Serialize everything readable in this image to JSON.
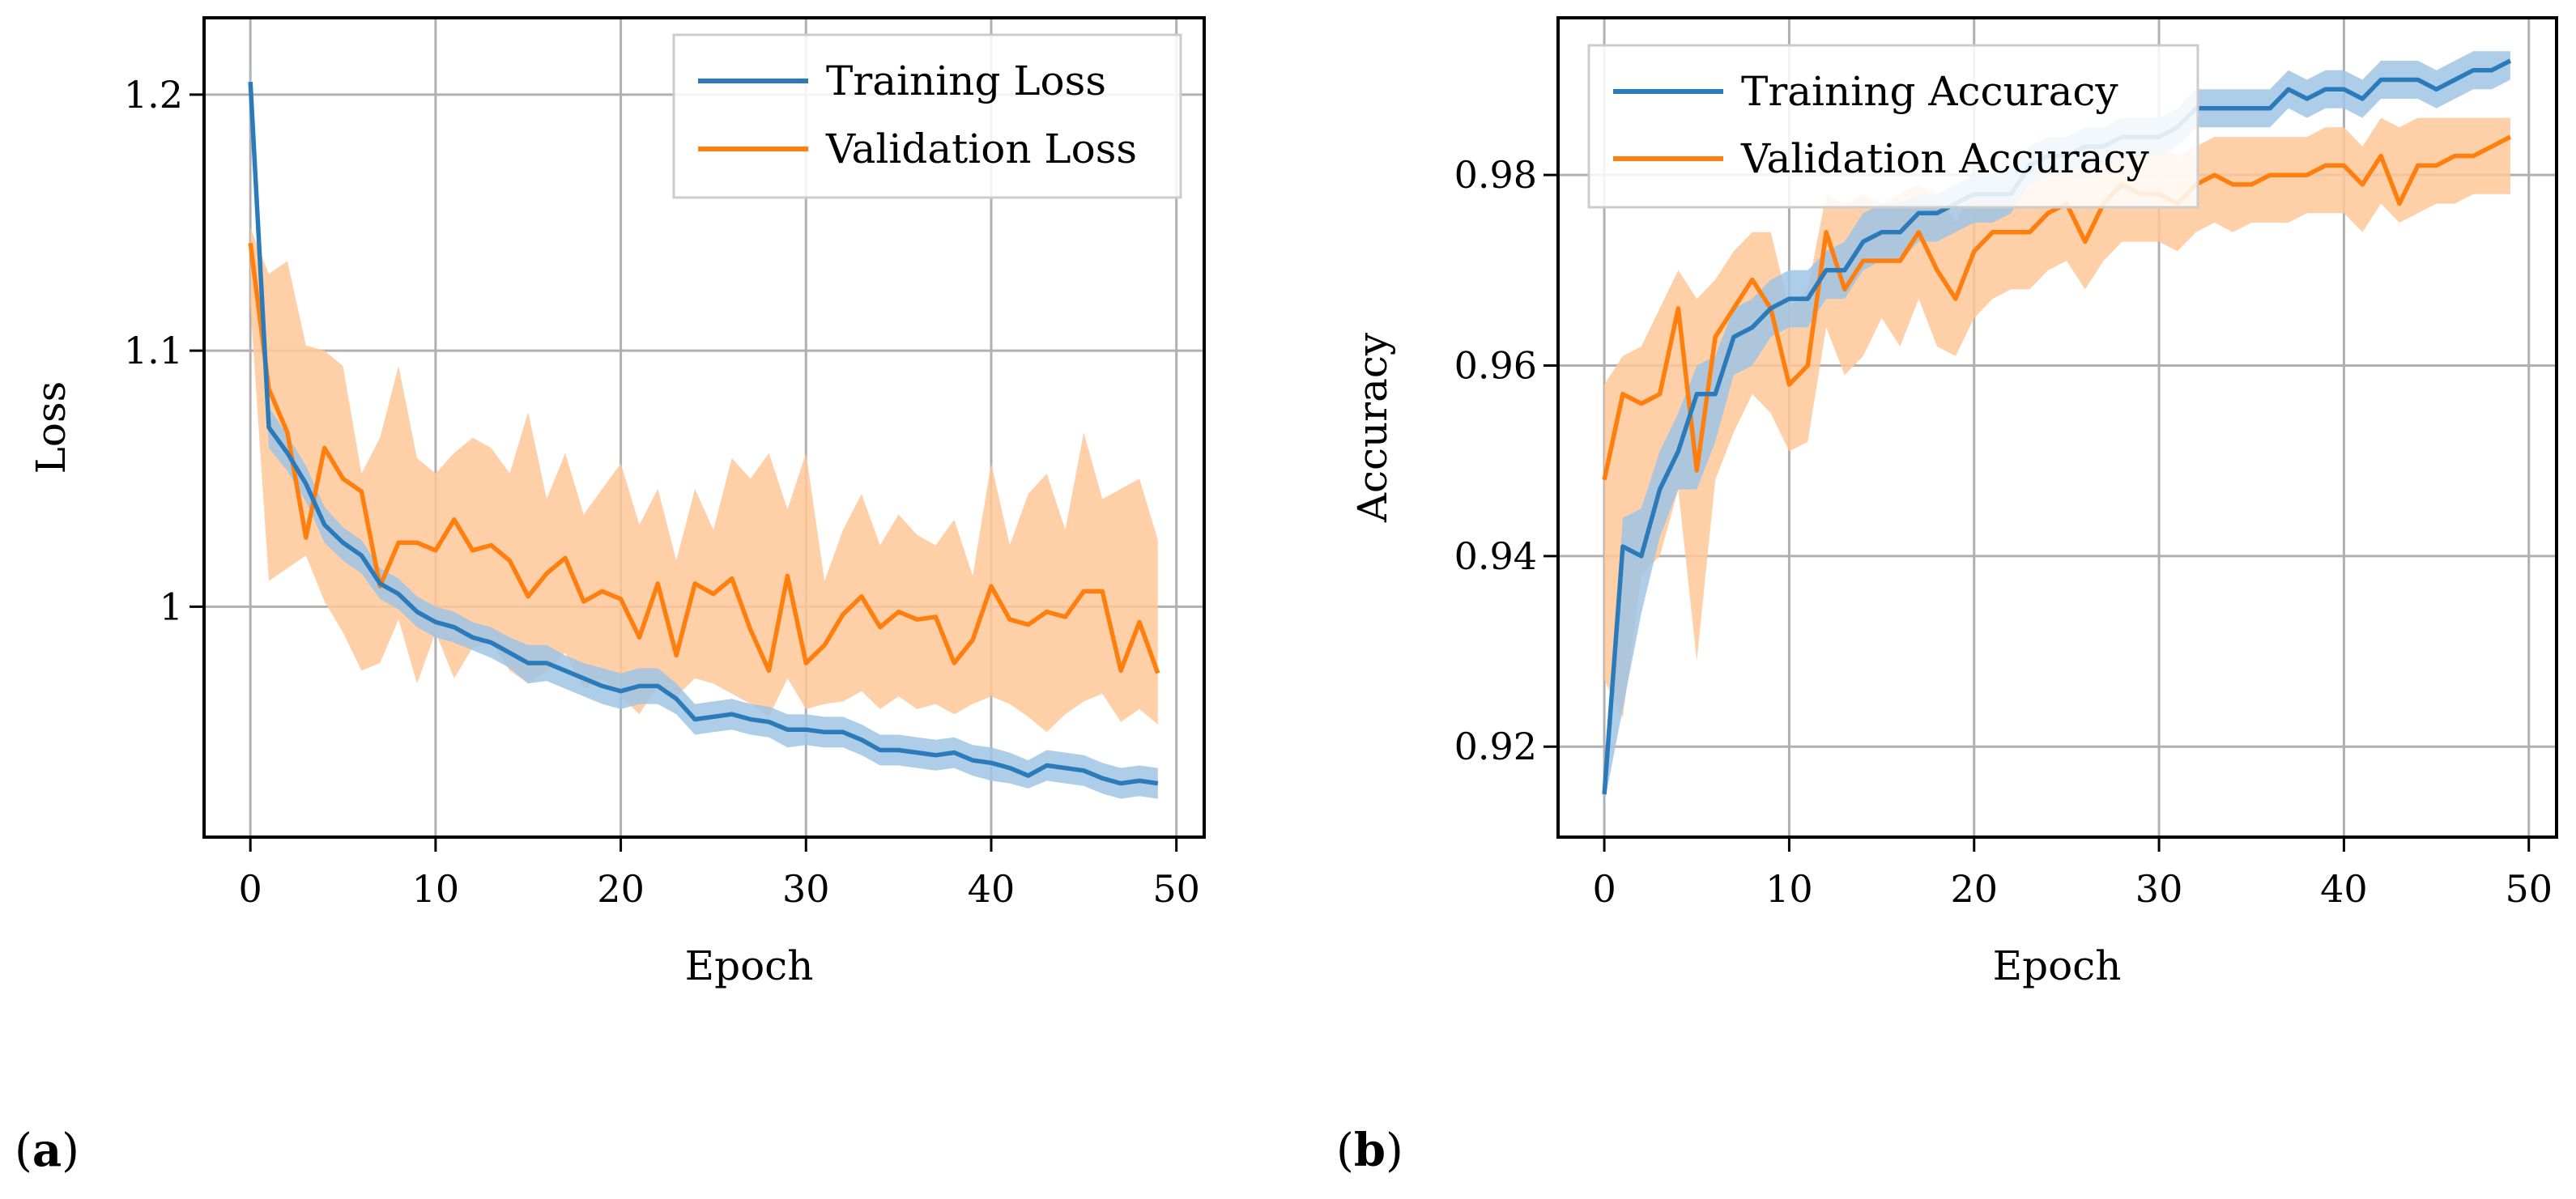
{
  "colors": {
    "training": "#2b7bba",
    "training_band": "#9fc4e4",
    "validation": "#ff7f0e",
    "validation_band": "#ffc799",
    "grid": "#b0b0b0",
    "frame": "#000000"
  },
  "chart_data": [
    {
      "id": "loss",
      "type": "line",
      "panel_label": "a",
      "title": "",
      "xlabel": "Epoch",
      "ylabel": "Loss",
      "xlim": [
        -2.5,
        51.5
      ],
      "ylim": [
        0.91,
        1.23
      ],
      "xticks": [
        0,
        10,
        20,
        30,
        40,
        50
      ],
      "xtick_labels": [
        "0",
        "10",
        "20",
        "30",
        "40",
        "50"
      ],
      "yticks": [
        1.0,
        1.1,
        1.2
      ],
      "ytick_labels": [
        "1",
        "1.1",
        "1.2"
      ],
      "grid": true,
      "legend_position": "top-right",
      "x": [
        0,
        1,
        2,
        3,
        4,
        5,
        6,
        7,
        8,
        9,
        10,
        11,
        12,
        13,
        14,
        15,
        16,
        17,
        18,
        19,
        20,
        21,
        22,
        23,
        24,
        25,
        26,
        27,
        28,
        29,
        30,
        31,
        32,
        33,
        34,
        35,
        36,
        37,
        38,
        39,
        40,
        41,
        42,
        43,
        44,
        45,
        46,
        47,
        48,
        49
      ],
      "series": [
        {
          "name": "Training Loss",
          "values": [
            1.205,
            1.07,
            1.06,
            1.048,
            1.032,
            1.025,
            1.02,
            1.009,
            1.005,
            0.998,
            0.994,
            0.992,
            0.988,
            0.986,
            0.982,
            0.978,
            0.978,
            0.975,
            0.972,
            0.969,
            0.967,
            0.969,
            0.969,
            0.964,
            0.956,
            0.957,
            0.958,
            0.956,
            0.955,
            0.952,
            0.952,
            0.951,
            0.951,
            0.948,
            0.944,
            0.944,
            0.943,
            0.942,
            0.943,
            0.94,
            0.939,
            0.937,
            0.934,
            0.938,
            0.937,
            0.936,
            0.933,
            0.931,
            0.932,
            0.931
          ],
          "lower": [
            1.195,
            1.062,
            1.053,
            1.041,
            1.025,
            1.018,
            1.013,
            1.003,
            0.999,
            0.992,
            0.988,
            0.986,
            0.983,
            0.98,
            0.976,
            0.97,
            0.971,
            0.968,
            0.965,
            0.962,
            0.96,
            0.962,
            0.962,
            0.958,
            0.95,
            0.951,
            0.952,
            0.95,
            0.949,
            0.945,
            0.946,
            0.945,
            0.945,
            0.942,
            0.938,
            0.938,
            0.937,
            0.936,
            0.937,
            0.934,
            0.932,
            0.931,
            0.929,
            0.932,
            0.931,
            0.93,
            0.927,
            0.925,
            0.926,
            0.925
          ],
          "upper": [
            1.212,
            1.078,
            1.067,
            1.055,
            1.039,
            1.031,
            1.026,
            1.015,
            1.011,
            1.004,
            1.0,
            0.998,
            0.994,
            0.992,
            0.988,
            0.985,
            0.985,
            0.981,
            0.978,
            0.976,
            0.974,
            0.976,
            0.976,
            0.97,
            0.962,
            0.963,
            0.964,
            0.962,
            0.961,
            0.958,
            0.958,
            0.957,
            0.957,
            0.954,
            0.95,
            0.95,
            0.949,
            0.948,
            0.949,
            0.946,
            0.945,
            0.943,
            0.94,
            0.944,
            0.943,
            0.942,
            0.939,
            0.937,
            0.938,
            0.937
          ]
        },
        {
          "name": "Validation Loss",
          "values": [
            1.142,
            1.085,
            1.068,
            1.027,
            1.062,
            1.05,
            1.045,
            1.008,
            1.025,
            1.025,
            1.022,
            1.034,
            1.022,
            1.024,
            1.018,
            1.004,
            1.013,
            1.019,
            1.002,
            1.006,
            1.003,
            0.988,
            1.009,
            0.981,
            1.009,
            1.005,
            1.011,
            0.991,
            0.975,
            1.012,
            0.978,
            0.985,
            0.997,
            1.004,
            0.992,
            0.998,
            0.995,
            0.996,
            0.978,
            0.987,
            1.008,
            0.995,
            0.993,
            0.998,
            0.996,
            1.006,
            1.006,
            0.975,
            0.994,
            0.974
          ],
          "lower": [
            1.118,
            1.01,
            1.015,
            1.02,
            1.002,
            0.99,
            0.975,
            0.978,
            0.995,
            0.97,
            0.99,
            0.972,
            0.984,
            0.986,
            0.975,
            0.97,
            0.975,
            0.982,
            0.968,
            0.972,
            0.965,
            0.958,
            0.969,
            0.965,
            0.972,
            0.97,
            0.966,
            0.962,
            0.957,
            0.972,
            0.96,
            0.962,
            0.963,
            0.967,
            0.96,
            0.965,
            0.96,
            0.962,
            0.958,
            0.962,
            0.965,
            0.962,
            0.957,
            0.951,
            0.958,
            0.963,
            0.966,
            0.955,
            0.96,
            0.954
          ],
          "upper": [
            1.148,
            1.13,
            1.135,
            1.102,
            1.1,
            1.094,
            1.052,
            1.066,
            1.094,
            1.058,
            1.052,
            1.06,
            1.066,
            1.062,
            1.052,
            1.076,
            1.042,
            1.06,
            1.036,
            1.046,
            1.056,
            1.032,
            1.046,
            1.018,
            1.046,
            1.03,
            1.058,
            1.05,
            1.06,
            1.038,
            1.06,
            1.01,
            1.03,
            1.044,
            1.024,
            1.036,
            1.028,
            1.024,
            1.034,
            1.012,
            1.056,
            1.024,
            1.044,
            1.052,
            1.03,
            1.068,
            1.042,
            1.046,
            1.05,
            1.026
          ]
        }
      ]
    },
    {
      "id": "accuracy",
      "type": "line",
      "panel_label": "b",
      "title": "",
      "xlabel": "Epoch",
      "ylabel": "Accuracy",
      "xlim": [
        -2.5,
        51.5
      ],
      "ylim": [
        0.9105,
        0.9965
      ],
      "xticks": [
        0,
        10,
        20,
        30,
        40,
        50
      ],
      "xtick_labels": [
        "0",
        "10",
        "20",
        "30",
        "40",
        "50"
      ],
      "yticks": [
        0.92,
        0.94,
        0.96,
        0.98
      ],
      "ytick_labels": [
        "0.92",
        "0.94",
        "0.96",
        "0.98"
      ],
      "grid": true,
      "legend_position": "top-left",
      "x": [
        0,
        1,
        2,
        3,
        4,
        5,
        6,
        7,
        8,
        9,
        10,
        11,
        12,
        13,
        14,
        15,
        16,
        17,
        18,
        19,
        20,
        21,
        22,
        23,
        24,
        25,
        26,
        27,
        28,
        29,
        30,
        31,
        32,
        33,
        34,
        35,
        36,
        37,
        38,
        39,
        40,
        41,
        42,
        43,
        44,
        45,
        46,
        47,
        48,
        49
      ],
      "series": [
        {
          "name": "Training Accuracy",
          "values": [
            0.915,
            0.941,
            0.94,
            0.947,
            0.951,
            0.957,
            0.957,
            0.963,
            0.964,
            0.966,
            0.967,
            0.967,
            0.97,
            0.97,
            0.973,
            0.974,
            0.974,
            0.976,
            0.976,
            0.977,
            0.978,
            0.978,
            0.978,
            0.981,
            0.982,
            0.982,
            0.983,
            0.983,
            0.984,
            0.984,
            0.984,
            0.985,
            0.987,
            0.987,
            0.987,
            0.987,
            0.987,
            0.989,
            0.988,
            0.989,
            0.989,
            0.988,
            0.99,
            0.99,
            0.99,
            0.989,
            0.99,
            0.991,
            0.991,
            0.992
          ],
          "lower": [
            0.914,
            0.924,
            0.934,
            0.942,
            0.947,
            0.947,
            0.952,
            0.959,
            0.96,
            0.963,
            0.964,
            0.964,
            0.967,
            0.967,
            0.97,
            0.971,
            0.971,
            0.973,
            0.973,
            0.974,
            0.975,
            0.975,
            0.976,
            0.979,
            0.98,
            0.98,
            0.981,
            0.981,
            0.982,
            0.982,
            0.982,
            0.983,
            0.985,
            0.985,
            0.985,
            0.985,
            0.985,
            0.987,
            0.986,
            0.987,
            0.987,
            0.986,
            0.988,
            0.988,
            0.988,
            0.987,
            0.988,
            0.989,
            0.989,
            0.99
          ],
          "upper": [
            0.916,
            0.944,
            0.945,
            0.951,
            0.955,
            0.96,
            0.961,
            0.966,
            0.967,
            0.969,
            0.97,
            0.97,
            0.972,
            0.973,
            0.976,
            0.977,
            0.977,
            0.978,
            0.978,
            0.979,
            0.98,
            0.98,
            0.981,
            0.983,
            0.984,
            0.984,
            0.985,
            0.985,
            0.986,
            0.986,
            0.986,
            0.987,
            0.989,
            0.989,
            0.989,
            0.989,
            0.989,
            0.991,
            0.99,
            0.991,
            0.991,
            0.99,
            0.992,
            0.992,
            0.992,
            0.991,
            0.992,
            0.993,
            0.993,
            0.993
          ]
        },
        {
          "name": "Validation Accuracy",
          "values": [
            0.948,
            0.957,
            0.956,
            0.957,
            0.966,
            0.949,
            0.963,
            0.966,
            0.969,
            0.966,
            0.958,
            0.96,
            0.974,
            0.968,
            0.971,
            0.971,
            0.971,
            0.974,
            0.97,
            0.967,
            0.972,
            0.974,
            0.974,
            0.974,
            0.976,
            0.977,
            0.973,
            0.977,
            0.979,
            0.978,
            0.978,
            0.977,
            0.979,
            0.98,
            0.979,
            0.979,
            0.98,
            0.98,
            0.98,
            0.981,
            0.981,
            0.979,
            0.982,
            0.977,
            0.981,
            0.981,
            0.982,
            0.982,
            0.983,
            0.984
          ],
          "lower": [
            0.927,
            0.923,
            0.938,
            0.94,
            0.947,
            0.929,
            0.948,
            0.953,
            0.957,
            0.955,
            0.951,
            0.952,
            0.964,
            0.959,
            0.961,
            0.965,
            0.962,
            0.967,
            0.962,
            0.961,
            0.965,
            0.967,
            0.968,
            0.968,
            0.97,
            0.971,
            0.968,
            0.971,
            0.973,
            0.973,
            0.973,
            0.972,
            0.974,
            0.975,
            0.974,
            0.975,
            0.975,
            0.975,
            0.976,
            0.976,
            0.976,
            0.974,
            0.977,
            0.975,
            0.976,
            0.977,
            0.977,
            0.978,
            0.978,
            0.978
          ],
          "upper": [
            0.958,
            0.961,
            0.962,
            0.966,
            0.97,
            0.967,
            0.969,
            0.972,
            0.974,
            0.974,
            0.966,
            0.968,
            0.978,
            0.977,
            0.978,
            0.977,
            0.978,
            0.979,
            0.978,
            0.975,
            0.979,
            0.979,
            0.979,
            0.98,
            0.981,
            0.982,
            0.98,
            0.982,
            0.983,
            0.983,
            0.983,
            0.982,
            0.983,
            0.984,
            0.984,
            0.984,
            0.984,
            0.984,
            0.984,
            0.985,
            0.985,
            0.983,
            0.986,
            0.985,
            0.986,
            0.986,
            0.986,
            0.986,
            0.986,
            0.986
          ]
        }
      ]
    }
  ]
}
